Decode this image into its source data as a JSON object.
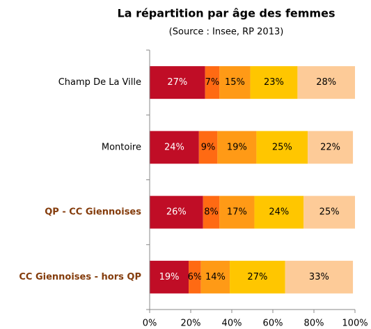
{
  "chart_data": {
    "type": "stacked-bar-horizontal",
    "title": "La répartition par âge des femmes",
    "subtitle": "(Source : Insee, RP 2013)",
    "categories": [
      "Champ De La Ville",
      "Montoire",
      "QP - CC Giennoises",
      "CC Giennoises - hors QP"
    ],
    "category_colors": [
      "#000000",
      "#000000",
      "#843c0c",
      "#843c0c"
    ],
    "category_bold": [
      false,
      false,
      true,
      true
    ],
    "series": [
      {
        "color": "#c00d26",
        "label_color": "#ffffff",
        "values": [
          27,
          24,
          26,
          19
        ],
        "value_labels": [
          "27%",
          "24%",
          "26%",
          "19%"
        ]
      },
      {
        "color": "#ff6a13",
        "label_color": "#000000",
        "values": [
          7,
          9,
          8,
          6
        ],
        "value_labels": [
          "7%",
          "9%",
          "8%",
          "6%"
        ]
      },
      {
        "color": "#ff9a16",
        "label_color": "#000000",
        "values": [
          15,
          19,
          17,
          14
        ],
        "value_labels": [
          "15%",
          "19%",
          "17%",
          "14%"
        ]
      },
      {
        "color": "#ffc600",
        "label_color": "#000000",
        "values": [
          23,
          25,
          24,
          27
        ],
        "value_labels": [
          "23%",
          "25%",
          "24%",
          "27%"
        ]
      },
      {
        "color": "#fdcb98",
        "label_color": "#000000",
        "values": [
          28,
          22,
          25,
          33
        ],
        "value_labels": [
          "28%",
          "22%",
          "25%",
          "33%"
        ]
      }
    ],
    "xlim": [
      0,
      100
    ],
    "xticks": [
      {
        "value": 0,
        "label": "0%"
      },
      {
        "value": 20,
        "label": "20%"
      },
      {
        "value": 40,
        "label": "40%"
      },
      {
        "value": 60,
        "label": "60%"
      },
      {
        "value": 80,
        "label": "80%"
      },
      {
        "value": 100,
        "label": "100%"
      }
    ],
    "grid": false
  }
}
